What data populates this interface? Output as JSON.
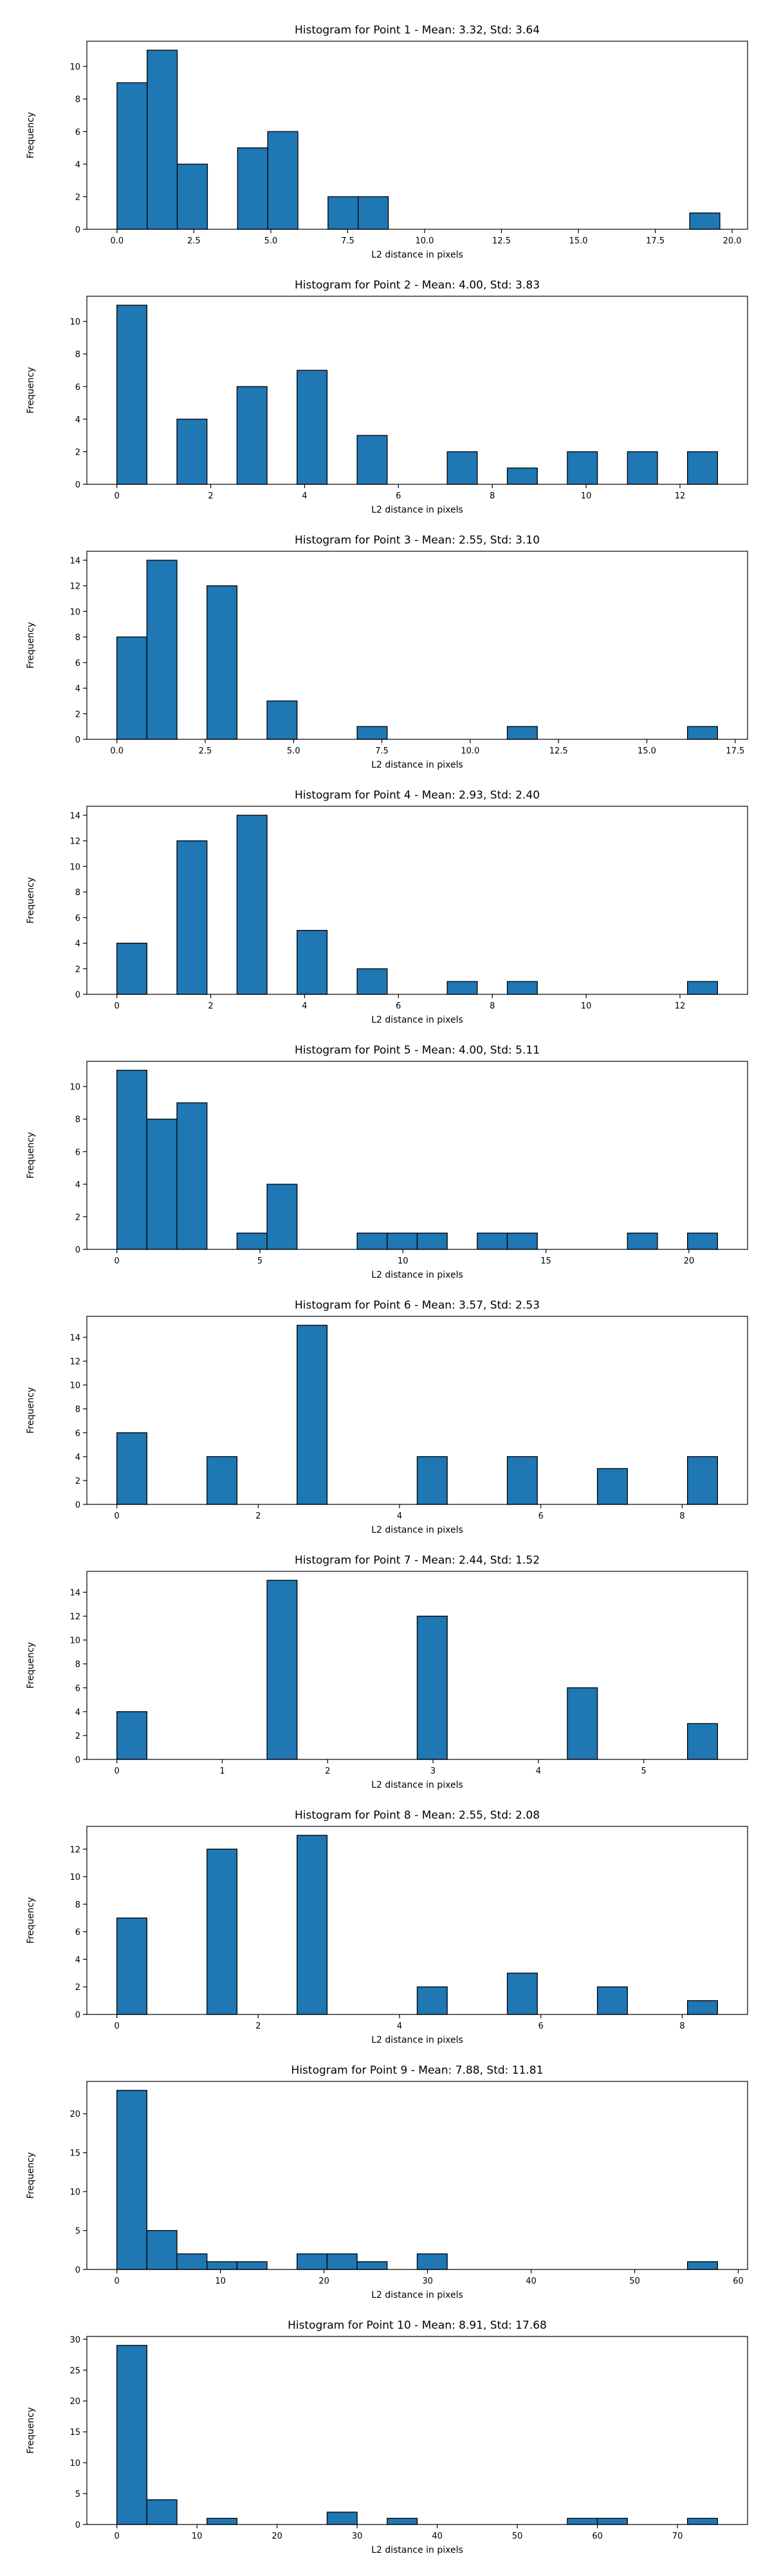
{
  "chart_data": [
    {
      "type": "bar",
      "title": "Histogram for Point 1 - Mean: 3.32, Std: 3.64",
      "xlabel": "L2 distance in pixels",
      "ylabel": "Frequency",
      "xlim": [
        -0.98,
        20.5
      ],
      "ylim": [
        0,
        11.55
      ],
      "xticks": [
        0.0,
        2.5,
        5.0,
        7.5,
        10.0,
        12.5,
        15.0,
        17.5,
        20.0
      ],
      "xtick_labels": [
        "0.0",
        "2.5",
        "5.0",
        "7.5",
        "10.0",
        "12.5",
        "15.0",
        "17.5",
        "20.0"
      ],
      "yticks": [
        0,
        2,
        4,
        6,
        8,
        10
      ],
      "bin_edges": [
        0.0,
        0.98,
        1.96,
        2.94,
        3.92,
        4.9,
        5.88,
        6.86,
        7.84,
        8.82,
        9.8,
        10.78,
        11.76,
        12.74,
        13.72,
        14.7,
        15.68,
        16.66,
        17.64,
        18.62,
        19.6
      ],
      "values": [
        9,
        11,
        4,
        0,
        5,
        6,
        0,
        2,
        2,
        0,
        0,
        0,
        0,
        0,
        0,
        0,
        0,
        0,
        0,
        1
      ],
      "bar_color": "#1f77b4",
      "edge_color": "#000000",
      "grid": false,
      "legend": "none"
    },
    {
      "type": "bar",
      "title": "Histogram for Point 2 - Mean: 4.00, Std: 3.83",
      "xlabel": "L2 distance in pixels",
      "ylabel": "Frequency",
      "xlim": [
        -0.64,
        13.44
      ],
      "ylim": [
        0,
        11.55
      ],
      "xticks": [
        0,
        2,
        4,
        6,
        8,
        10,
        12
      ],
      "xtick_labels": [
        "0",
        "2",
        "4",
        "6",
        "8",
        "10",
        "12"
      ],
      "yticks": [
        0,
        2,
        4,
        6,
        8,
        10
      ],
      "bin_edges": [
        0.0,
        0.64,
        1.28,
        1.92,
        2.56,
        3.2,
        3.84,
        4.48,
        5.12,
        5.76,
        6.4,
        7.04,
        7.68,
        8.32,
        8.96,
        9.6,
        10.24,
        10.88,
        11.52,
        12.16,
        12.8
      ],
      "values": [
        11,
        0,
        4,
        0,
        6,
        0,
        7,
        0,
        3,
        0,
        0,
        2,
        0,
        1,
        0,
        2,
        0,
        2,
        0,
        2
      ],
      "bar_color": "#1f77b4",
      "edge_color": "#000000",
      "grid": false,
      "legend": "none"
    },
    {
      "type": "bar",
      "title": "Histogram for Point 3 - Mean: 2.55, Std: 3.10",
      "xlabel": "L2 distance in pixels",
      "ylabel": "Frequency",
      "xlim": [
        -0.85,
        17.85
      ],
      "ylim": [
        0,
        14.7
      ],
      "xticks": [
        0.0,
        2.5,
        5.0,
        7.5,
        10.0,
        12.5,
        15.0,
        17.5
      ],
      "xtick_labels": [
        "0.0",
        "2.5",
        "5.0",
        "7.5",
        "10.0",
        "12.5",
        "15.0",
        "17.5"
      ],
      "yticks": [
        0,
        2,
        4,
        6,
        8,
        10,
        12,
        14
      ],
      "bin_edges": [
        0.0,
        0.85,
        1.7,
        2.55,
        3.4,
        4.25,
        5.1,
        5.95,
        6.8,
        7.65,
        8.5,
        9.35,
        10.2,
        11.05,
        11.9,
        12.75,
        13.6,
        14.45,
        15.3,
        16.15,
        17.0
      ],
      "values": [
        8,
        14,
        0,
        12,
        0,
        3,
        0,
        0,
        1,
        0,
        0,
        0,
        0,
        1,
        0,
        0,
        0,
        0,
        0,
        1
      ],
      "bar_color": "#1f77b4",
      "edge_color": "#000000",
      "grid": false,
      "legend": "none"
    },
    {
      "type": "bar",
      "title": "Histogram for Point 4 - Mean: 2.93, Std: 2.40",
      "xlabel": "L2 distance in pixels",
      "ylabel": "Frequency",
      "xlim": [
        -0.64,
        13.44
      ],
      "ylim": [
        0,
        14.7
      ],
      "xticks": [
        0,
        2,
        4,
        6,
        8,
        10,
        12
      ],
      "xtick_labels": [
        "0",
        "2",
        "4",
        "6",
        "8",
        "10",
        "12"
      ],
      "yticks": [
        0,
        2,
        4,
        6,
        8,
        10,
        12,
        14
      ],
      "bin_edges": [
        0.0,
        0.64,
        1.28,
        1.92,
        2.56,
        3.2,
        3.84,
        4.48,
        5.12,
        5.76,
        6.4,
        7.04,
        7.68,
        8.32,
        8.96,
        9.6,
        10.24,
        10.88,
        11.52,
        12.16,
        12.8
      ],
      "values": [
        4,
        0,
        12,
        0,
        14,
        0,
        5,
        0,
        2,
        0,
        0,
        1,
        0,
        1,
        0,
        0,
        0,
        0,
        0,
        1
      ],
      "bar_color": "#1f77b4",
      "edge_color": "#000000",
      "grid": false,
      "legend": "none"
    },
    {
      "type": "bar",
      "title": "Histogram for Point 5 - Mean: 4.00, Std: 5.11",
      "xlabel": "L2 distance in pixels",
      "ylabel": "Frequency",
      "xlim": [
        -1.05,
        22.05
      ],
      "ylim": [
        0,
        11.55
      ],
      "xticks": [
        0,
        5,
        10,
        15,
        20
      ],
      "xtick_labels": [
        "0",
        "5",
        "10",
        "15",
        "20"
      ],
      "yticks": [
        0,
        2,
        4,
        6,
        8,
        10
      ],
      "bin_edges": [
        0.0,
        1.05,
        2.1,
        3.15,
        4.2,
        5.25,
        6.3,
        7.35,
        8.4,
        9.45,
        10.5,
        11.55,
        12.6,
        13.65,
        14.7,
        15.75,
        16.8,
        17.85,
        18.9,
        19.95,
        21.0
      ],
      "values": [
        11,
        8,
        9,
        0,
        1,
        4,
        0,
        0,
        1,
        1,
        1,
        0,
        1,
        1,
        0,
        0,
        0,
        1,
        0,
        1
      ],
      "bar_color": "#1f77b4",
      "edge_color": "#000000",
      "grid": false,
      "legend": "none"
    },
    {
      "type": "bar",
      "title": "Histogram for Point 6 - Mean: 3.57, Std: 2.53",
      "xlabel": "L2 distance in pixels",
      "ylabel": "Frequency",
      "xlim": [
        -0.425,
        8.925
      ],
      "ylim": [
        0,
        15.75
      ],
      "xticks": [
        0,
        2,
        4,
        6,
        8
      ],
      "xtick_labels": [
        "0",
        "2",
        "4",
        "6",
        "8"
      ],
      "yticks": [
        0,
        2,
        4,
        6,
        8,
        10,
        12,
        14
      ],
      "bin_edges": [
        0.0,
        0.425,
        0.85,
        1.275,
        1.7,
        2.125,
        2.55,
        2.975,
        3.4,
        3.825,
        4.25,
        4.675,
        5.1,
        5.525,
        5.95,
        6.375,
        6.8,
        7.225,
        7.65,
        8.075,
        8.5
      ],
      "values": [
        6,
        0,
        0,
        4,
        0,
        0,
        15,
        0,
        0,
        0,
        4,
        0,
        0,
        4,
        0,
        0,
        3,
        0,
        0,
        4
      ],
      "bar_color": "#1f77b4",
      "edge_color": "#000000",
      "grid": false,
      "legend": "none"
    },
    {
      "type": "bar",
      "title": "Histogram for Point 7 - Mean: 2.44, Std: 1.52",
      "xlabel": "L2 distance in pixels",
      "ylabel": "Frequency",
      "xlim": [
        -0.285,
        5.985
      ],
      "ylim": [
        0,
        15.75
      ],
      "xticks": [
        0,
        1,
        2,
        3,
        4,
        5
      ],
      "xtick_labels": [
        "0",
        "1",
        "2",
        "3",
        "4",
        "5"
      ],
      "yticks": [
        0,
        2,
        4,
        6,
        8,
        10,
        12,
        14
      ],
      "bin_edges": [
        0.0,
        0.285,
        0.57,
        0.855,
        1.14,
        1.425,
        1.71,
        1.995,
        2.28,
        2.565,
        2.85,
        3.135,
        3.42,
        3.705,
        3.99,
        4.275,
        4.56,
        4.845,
        5.13,
        5.415,
        5.7
      ],
      "values": [
        4,
        0,
        0,
        0,
        0,
        15,
        0,
        0,
        0,
        0,
        12,
        0,
        0,
        0,
        0,
        6,
        0,
        0,
        0,
        3
      ],
      "bar_color": "#1f77b4",
      "edge_color": "#000000",
      "grid": false,
      "legend": "none"
    },
    {
      "type": "bar",
      "title": "Histogram for Point 8 - Mean: 2.55, Std: 2.08",
      "xlabel": "L2 distance in pixels",
      "ylabel": "Frequency",
      "xlim": [
        -0.425,
        8.925
      ],
      "ylim": [
        0,
        13.65
      ],
      "xticks": [
        0,
        2,
        4,
        6,
        8
      ],
      "xtick_labels": [
        "0",
        "2",
        "4",
        "6",
        "8"
      ],
      "yticks": [
        0,
        2,
        4,
        6,
        8,
        10,
        12
      ],
      "bin_edges": [
        0.0,
        0.425,
        0.85,
        1.275,
        1.7,
        2.125,
        2.55,
        2.975,
        3.4,
        3.825,
        4.25,
        4.675,
        5.1,
        5.525,
        5.95,
        6.375,
        6.8,
        7.225,
        7.65,
        8.075,
        8.5
      ],
      "values": [
        7,
        0,
        0,
        12,
        0,
        0,
        13,
        0,
        0,
        0,
        2,
        0,
        0,
        3,
        0,
        0,
        2,
        0,
        0,
        1
      ],
      "bar_color": "#1f77b4",
      "edge_color": "#000000",
      "grid": false,
      "legend": "none"
    },
    {
      "type": "bar",
      "title": "Histogram for Point 9 - Mean: 7.88, Std: 11.81",
      "xlabel": "L2 distance in pixels",
      "ylabel": "Frequency",
      "xlim": [
        -2.9,
        60.9
      ],
      "ylim": [
        0,
        24.15
      ],
      "xticks": [
        0,
        10,
        20,
        30,
        40,
        50,
        60
      ],
      "xtick_labels": [
        "0",
        "10",
        "20",
        "30",
        "40",
        "50",
        "60"
      ],
      "yticks": [
        0,
        5,
        10,
        15,
        20
      ],
      "bin_edges": [
        0.0,
        2.9,
        5.8,
        8.7,
        11.6,
        14.5,
        17.4,
        20.3,
        23.2,
        26.1,
        29.0,
        31.9,
        34.8,
        37.7,
        40.6,
        43.5,
        46.4,
        49.3,
        52.2,
        55.1,
        58.0
      ],
      "values": [
        23,
        5,
        2,
        1,
        1,
        0,
        2,
        2,
        1,
        0,
        2,
        0,
        0,
        0,
        0,
        0,
        0,
        0,
        0,
        1
      ],
      "bar_color": "#1f77b4",
      "edge_color": "#000000",
      "grid": false,
      "legend": "none"
    },
    {
      "type": "bar",
      "title": "Histogram for Point 10 - Mean: 8.91, Std: 17.68",
      "xlabel": "L2 distance in pixels",
      "ylabel": "Frequency",
      "xlim": [
        -3.75,
        78.75
      ],
      "ylim": [
        0,
        30.45
      ],
      "xticks": [
        0,
        10,
        20,
        30,
        40,
        50,
        60,
        70
      ],
      "xtick_labels": [
        "0",
        "10",
        "20",
        "30",
        "40",
        "50",
        "60",
        "70"
      ],
      "yticks": [
        0,
        5,
        10,
        15,
        20,
        25,
        30
      ],
      "bin_edges": [
        0.0,
        3.75,
        7.5,
        11.25,
        15.0,
        18.75,
        22.5,
        26.25,
        30.0,
        33.75,
        37.5,
        41.25,
        45.0,
        48.75,
        52.5,
        56.25,
        60.0,
        63.75,
        67.5,
        71.25,
        75.0
      ],
      "values": [
        29,
        4,
        0,
        1,
        0,
        0,
        0,
        2,
        0,
        1,
        0,
        0,
        0,
        0,
        0,
        1,
        1,
        0,
        0,
        1
      ],
      "bar_color": "#1f77b4",
      "edge_color": "#000000",
      "grid": false,
      "legend": "none"
    }
  ]
}
